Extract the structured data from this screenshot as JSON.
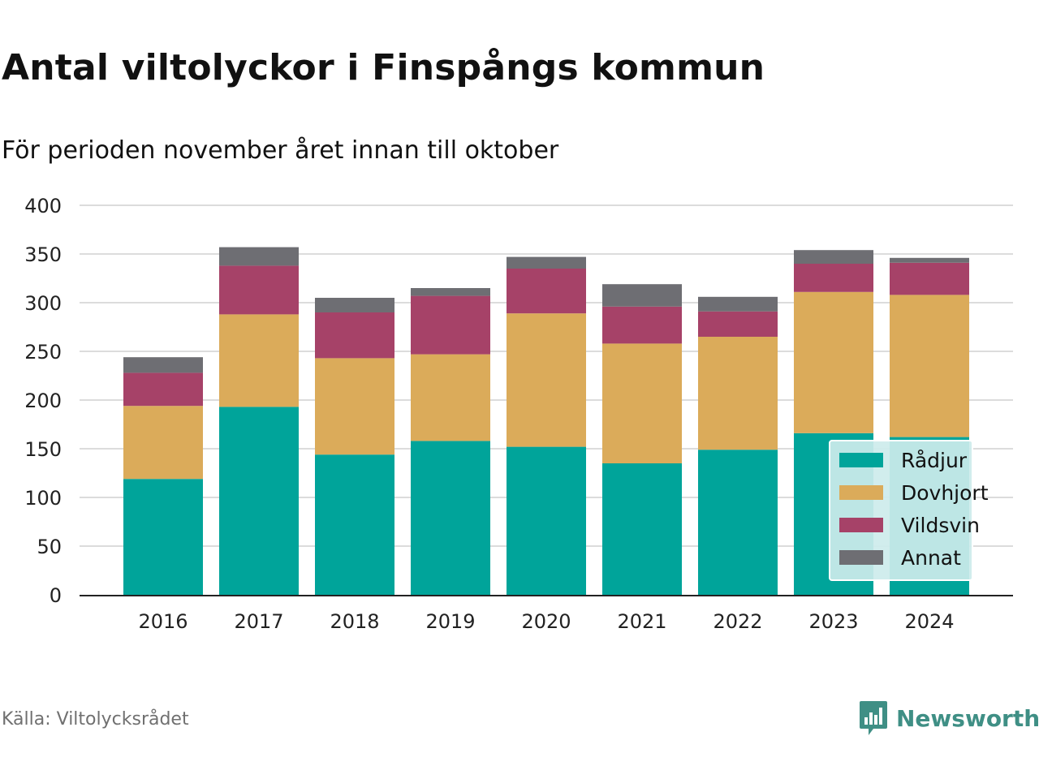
{
  "title": "Antal viltolyckor i Finspångs kommun",
  "subtitle": "För perioden november året innan till oktober",
  "source": "Källa: Viltolycksrådet",
  "brand": "Newsworthy",
  "colors": {
    "Rådjur": "#00a49a",
    "Dovhjort": "#dbab5a",
    "Vildsvin": "#a64268",
    "Annat": "#6e6e73",
    "grid": "#dcdcdc",
    "axis": "#222222",
    "legend_bg": "#cdeceb",
    "brand": "#3f8f85"
  },
  "chart_data": {
    "type": "bar",
    "stacked": true,
    "categories": [
      "2016",
      "2017",
      "2018",
      "2019",
      "2020",
      "2021",
      "2022",
      "2023",
      "2024"
    ],
    "series": [
      {
        "name": "Rådjur",
        "values": [
          119,
          193,
          144,
          158,
          152,
          135,
          149,
          166,
          162
        ]
      },
      {
        "name": "Dovhjort",
        "values": [
          75,
          95,
          99,
          89,
          137,
          123,
          116,
          145,
          146
        ]
      },
      {
        "name": "Vildsvin",
        "values": [
          34,
          50,
          47,
          60,
          46,
          38,
          26,
          29,
          33
        ]
      },
      {
        "name": "Annat",
        "values": [
          16,
          19,
          15,
          8,
          12,
          23,
          15,
          14,
          5
        ]
      }
    ],
    "yticks": [
      0,
      50,
      100,
      150,
      200,
      250,
      300,
      350,
      400
    ],
    "ylim": [
      0,
      400
    ],
    "xlabel": "",
    "ylabel": "",
    "grid": true,
    "legend_position": "bottom-right"
  }
}
